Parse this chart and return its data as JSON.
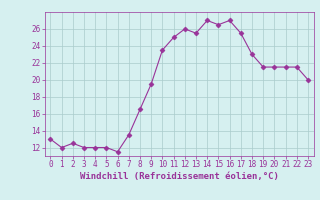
{
  "x": [
    0,
    1,
    2,
    3,
    4,
    5,
    6,
    7,
    8,
    9,
    10,
    11,
    12,
    13,
    14,
    15,
    16,
    17,
    18,
    19,
    20,
    21,
    22,
    23
  ],
  "y": [
    13,
    12,
    12.5,
    12,
    12,
    12,
    11.5,
    13.5,
    16.5,
    19.5,
    23.5,
    25,
    26,
    25.5,
    27,
    26.5,
    27,
    25.5,
    23,
    21.5,
    21.5,
    21.5,
    21.5,
    20
  ],
  "line_color": "#993399",
  "marker": "D",
  "marker_size": 2.5,
  "bg_color": "#d6f0f0",
  "grid_color": "#aacccc",
  "xlabel": "Windchill (Refroidissement éolien,°C)",
  "xlabel_color": "#993399",
  "ylim": [
    11,
    28
  ],
  "yticks": [
    12,
    14,
    16,
    18,
    20,
    22,
    24,
    26
  ],
  "xlim": [
    -0.5,
    23.5
  ],
  "xticks": [
    0,
    1,
    2,
    3,
    4,
    5,
    6,
    7,
    8,
    9,
    10,
    11,
    12,
    13,
    14,
    15,
    16,
    17,
    18,
    19,
    20,
    21,
    22,
    23
  ],
  "tick_color": "#993399",
  "tick_labelsize": 5.5,
  "xlabel_fontsize": 6.5
}
